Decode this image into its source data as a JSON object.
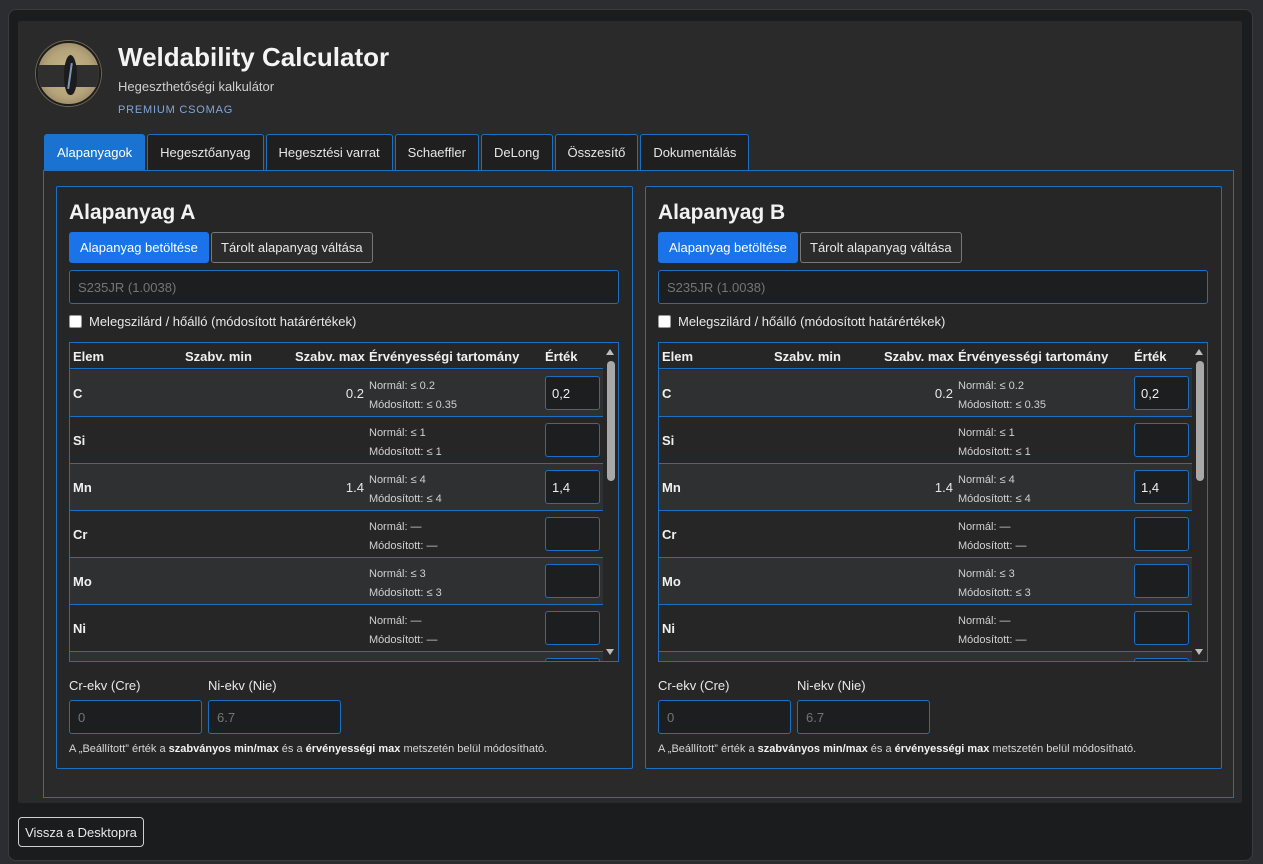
{
  "app": {
    "title": "Weldability Calculator",
    "subtitle": "Hegeszthetőségi kalkulátor",
    "badge": "PREMIUM CSOMAG"
  },
  "tabs": [
    {
      "label": "Alapanyagok",
      "active": true
    },
    {
      "label": "Hegesztőanyag",
      "active": false
    },
    {
      "label": "Hegesztési varrat",
      "active": false
    },
    {
      "label": "Schaeffler",
      "active": false
    },
    {
      "label": "DeLong",
      "active": false
    },
    {
      "label": "Összesítő",
      "active": false
    },
    {
      "label": "Dokumentálás",
      "active": false
    }
  ],
  "cards": [
    {
      "title": "Alapanyag A",
      "load_button": "Alapanyag betöltése",
      "switch_button": "Tárolt alapanyag váltása",
      "material_placeholder": "S235JR (1.0038)",
      "hot_resistant_label": "Melegszilárd / hőálló (módosított határértékek)",
      "columns": [
        "Elem",
        "Szabv. min",
        "Szabv. max",
        "Érvényességi tartomány",
        "Érték"
      ],
      "rows": [
        {
          "elem": "C",
          "min": "",
          "max": "0.2",
          "normal": "Normál: ≤ 0.2",
          "modified": "Módosított: ≤ 0.35",
          "value": "0,2"
        },
        {
          "elem": "Si",
          "min": "",
          "max": "",
          "normal": "Normál: ≤ 1",
          "modified": "Módosított: ≤ 1",
          "value": ""
        },
        {
          "elem": "Mn",
          "min": "",
          "max": "1.4",
          "normal": "Normál: ≤ 4",
          "modified": "Módosított: ≤ 4",
          "value": "1,4"
        },
        {
          "elem": "Cr",
          "min": "",
          "max": "",
          "normal": "Normál: —",
          "modified": "Módosított: —",
          "value": ""
        },
        {
          "elem": "Mo",
          "min": "",
          "max": "",
          "normal": "Normál: ≤ 3",
          "modified": "Módosított: ≤ 3",
          "value": ""
        },
        {
          "elem": "Ni",
          "min": "",
          "max": "",
          "normal": "Normál: —",
          "modified": "Módosított: —",
          "value": ""
        }
      ],
      "cr_eq_label": "Cr-ekv (Cre)",
      "cr_eq_placeholder": "0",
      "ni_eq_label": "Ni-ekv (Nie)",
      "ni_eq_placeholder": "6.7",
      "note": {
        "p1": "A „Beállított” érték a ",
        "b1": "szabványos min/max",
        "p2": " és a ",
        "b2": "érvényességi max",
        "p3": " metszetén belül módosítható."
      }
    },
    {
      "title": "Alapanyag B",
      "load_button": "Alapanyag betöltése",
      "switch_button": "Tárolt alapanyag váltása",
      "material_placeholder": "S235JR (1.0038)",
      "hot_resistant_label": "Melegszilárd / hőálló (módosított határértékek)",
      "columns": [
        "Elem",
        "Szabv. min",
        "Szabv. max",
        "Érvényességi tartomány",
        "Érték"
      ],
      "rows": [
        {
          "elem": "C",
          "min": "",
          "max": "0.2",
          "normal": "Normál: ≤ 0.2",
          "modified": "Módosított: ≤ 0.35",
          "value": "0,2"
        },
        {
          "elem": "Si",
          "min": "",
          "max": "",
          "normal": "Normál: ≤ 1",
          "modified": "Módosított: ≤ 1",
          "value": ""
        },
        {
          "elem": "Mn",
          "min": "",
          "max": "1.4",
          "normal": "Normál: ≤ 4",
          "modified": "Módosított: ≤ 4",
          "value": "1,4"
        },
        {
          "elem": "Cr",
          "min": "",
          "max": "",
          "normal": "Normál: —",
          "modified": "Módosított: —",
          "value": ""
        },
        {
          "elem": "Mo",
          "min": "",
          "max": "",
          "normal": "Normál: ≤ 3",
          "modified": "Módosított: ≤ 3",
          "value": ""
        },
        {
          "elem": "Ni",
          "min": "",
          "max": "",
          "normal": "Normál: —",
          "modified": "Módosított: —",
          "value": ""
        }
      ],
      "cr_eq_label": "Cr-ekv (Cre)",
      "cr_eq_placeholder": "0",
      "ni_eq_label": "Ni-ekv (Nie)",
      "ni_eq_placeholder": "6.7",
      "note": {
        "p1": "A „Beállított” érték a ",
        "b1": "szabványos min/max",
        "p2": " és a ",
        "b2": "érvényességi max",
        "p3": " metszetén belül módosítható."
      }
    }
  ],
  "footer": {
    "back_button": "Vissza a Desktopra"
  },
  "colors": {
    "accent": "#1a73e8",
    "border_accent": "#1d6fc4",
    "badge": "#7fa7dd"
  }
}
